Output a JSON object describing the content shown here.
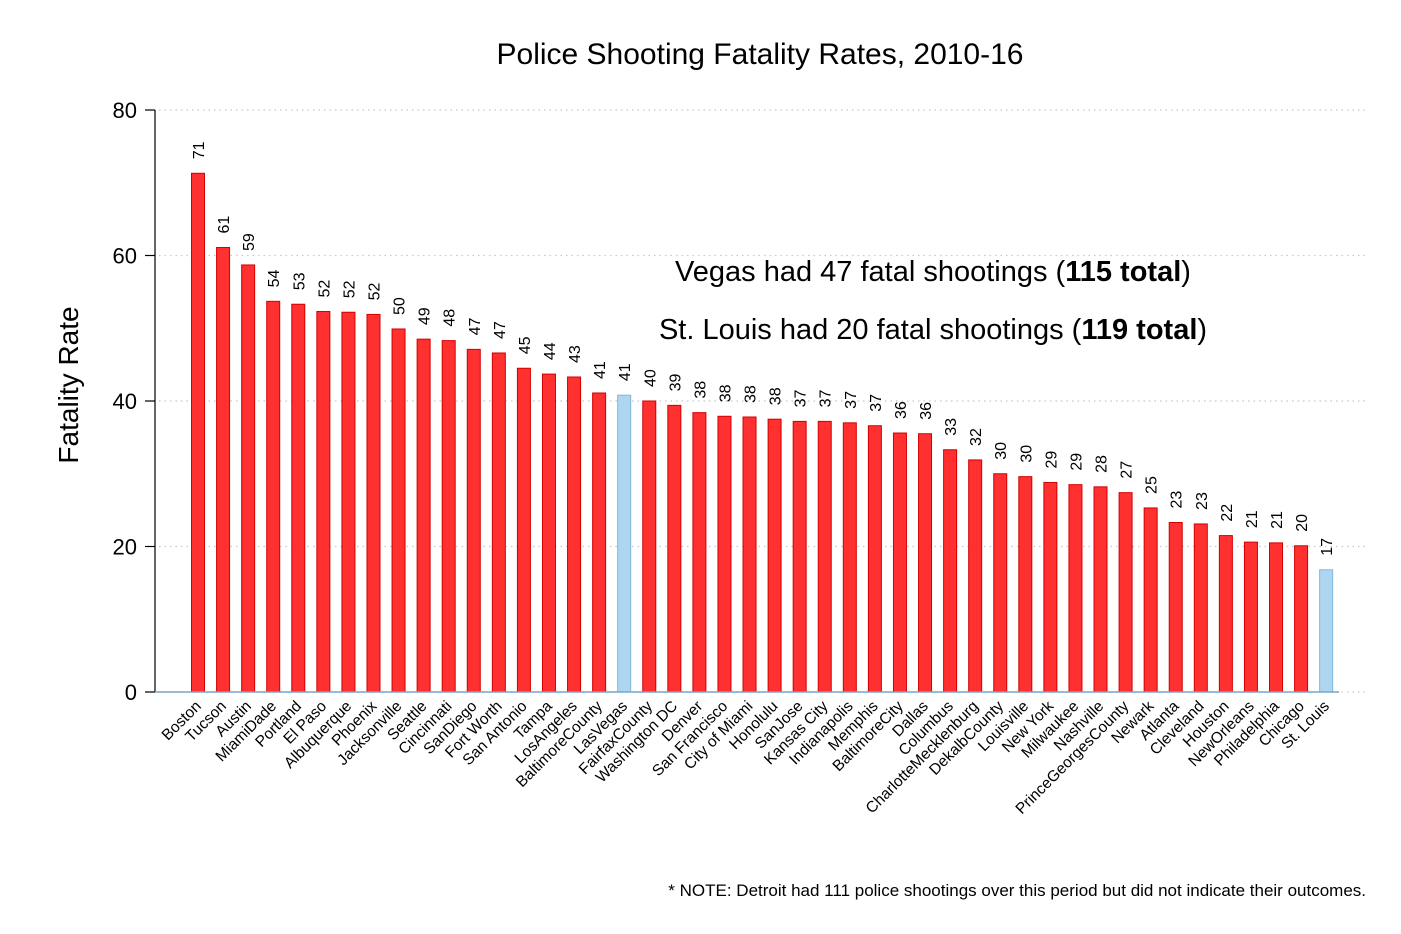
{
  "colors": {
    "highlight": "#aed6f1",
    "highlight_stroke": "#7fb7dd",
    "bar": "#ff3030",
    "bar_stroke": "#d40000"
  },
  "chart_data": {
    "type": "bar",
    "title": "Police Shooting Fatality Rates, 2010-16",
    "xlabel": "",
    "ylabel": "Fatality Rate",
    "ylim": [
      0,
      80
    ],
    "yticks": [
      0,
      20,
      40,
      60,
      80
    ],
    "grid": "horizontal dotted",
    "categories": [
      "Boston",
      "Tucson",
      "Austin",
      "MiamiDade",
      "Portland",
      "El Paso",
      "Albuquerque",
      "Phoenix",
      "Jacksonville",
      "Seattle",
      "Cincinnati",
      "SanDiego",
      "Fort Worth",
      "San Antonio",
      "Tampa",
      "LosAngeles",
      "BaltimoreCounty",
      "LasVegas",
      "FairfaxCounty",
      "Washington DC",
      "Denver",
      "San Francisco",
      "City of Miami",
      "Honolulu",
      "SanJose",
      "Kansas City",
      "Indianapolis",
      "Memphis",
      "BaltimoreCity",
      "Dallas",
      "Columbus",
      "CharlotteMecklenburg",
      "DekalbCounty",
      "Louisville",
      "New York",
      "Milwaukee",
      "Nashville",
      "PrinceGeorgesCounty",
      "Newark",
      "Atlanta",
      "Cleveland",
      "Houston",
      "NewOrleans",
      "Philadelphia",
      "Chicago",
      "St. Louis"
    ],
    "values": [
      71.3,
      61.1,
      58.7,
      53.7,
      53.3,
      52.3,
      52.2,
      51.9,
      49.9,
      48.5,
      48.3,
      47.1,
      46.6,
      44.5,
      43.7,
      43.3,
      41.1,
      40.8,
      40.0,
      39.4,
      38.4,
      37.9,
      37.8,
      37.5,
      37.2,
      37.2,
      37.0,
      36.6,
      35.6,
      35.5,
      33.3,
      31.9,
      30.0,
      29.6,
      28.8,
      28.5,
      28.2,
      27.4,
      25.3,
      23.3,
      23.1,
      21.5,
      20.6,
      20.5,
      20.1,
      16.8
    ],
    "data_labels": [
      "71",
      "61",
      "59",
      "54",
      "53",
      "52",
      "52",
      "52",
      "50",
      "49",
      "48",
      "47",
      "47",
      "45",
      "44",
      "43",
      "41",
      "41",
      "40",
      "39",
      "38",
      "38",
      "38",
      "38",
      "37",
      "37",
      "37",
      "37",
      "36",
      "36",
      "33",
      "32",
      "30",
      "30",
      "29",
      "29",
      "28",
      "27",
      "25",
      "23",
      "23",
      "22",
      "21",
      "21",
      "20",
      "17"
    ],
    "highlighted": [
      "LasVegas",
      "St. Louis"
    ],
    "annotations": [
      {
        "text": "Vegas had 47 fatal shootings (",
        "bold": "115 total",
        "tail": ")"
      },
      {
        "text": "St. Louis had 20 fatal shootings (",
        "bold": "119 total",
        "tail": ")"
      }
    ],
    "note": "* NOTE: Detroit had 111 police shootings over this period but did not indicate their outcomes."
  }
}
